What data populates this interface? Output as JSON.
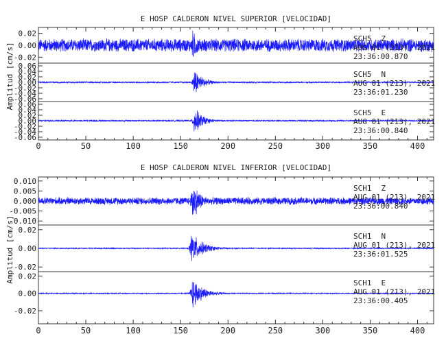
{
  "trace_color": "#1a1aff",
  "chart_data": [
    {
      "type": "line",
      "title": "E HOSP CALDERON NIVEL SUPERIOR [VELOCIDAD]",
      "ylabel": "Amplitud [cm/s]",
      "xlim": [
        0,
        417
      ],
      "x_ticks": [
        0,
        50,
        100,
        150,
        200,
        250,
        300,
        350,
        400
      ],
      "grid": false,
      "channels": [
        {
          "station": "SCH5",
          "component": "Z",
          "date": "AUG 01 (213), 2021",
          "time": "23:36:00.870",
          "ylim": [
            -0.03,
            0.03
          ],
          "y_ticks": [
            0.02,
            0.0,
            -0.02
          ],
          "y_tick_labels": [
            "0.02",
            "0.00",
            "-0.02"
          ],
          "noise_amp": 0.012,
          "peak_amp": 0.03,
          "peak_time": 162,
          "decay_s": 9
        },
        {
          "station": "SCH5",
          "component": "N",
          "date": "AUG 01 (213), 2021",
          "time": "23:36:01.230",
          "ylim": [
            -0.07,
            0.07
          ],
          "y_ticks": [
            0.06,
            0.04,
            0.02,
            0.0,
            -0.02,
            -0.04,
            -0.06
          ],
          "y_tick_labels": [
            "0.06",
            "0.04",
            "0.02",
            "0.00",
            "-0.02",
            "-0.04",
            "-0.06"
          ],
          "noise_amp": 0.003,
          "peak_amp": 0.06,
          "peak_time": 164,
          "decay_s": 9
        },
        {
          "station": "SCH5",
          "component": "E",
          "date": "AUG 01 (213), 2021",
          "time": "23:36:00.840",
          "ylim": [
            -0.07,
            0.07
          ],
          "y_ticks": [
            0.06,
            0.04,
            0.02,
            0.0,
            -0.02,
            -0.04,
            -0.06
          ],
          "y_tick_labels": [
            "0.06",
            "0.04",
            "0.02",
            "0.00",
            "-0.02",
            "-0.04",
            "-0.06"
          ],
          "noise_amp": 0.003,
          "peak_amp": 0.06,
          "peak_time": 164,
          "decay_s": 9
        }
      ]
    },
    {
      "type": "line",
      "title": "E HOSP CALDERON NIVEL INFERIOR [VELOCIDAD]",
      "ylabel": "Amplitud [cm/s]",
      "xlim": [
        0,
        417
      ],
      "x_ticks": [
        0,
        50,
        100,
        150,
        200,
        250,
        300,
        350,
        400
      ],
      "grid": false,
      "channels": [
        {
          "station": "SCH1",
          "component": "Z",
          "date": "AUG 01 (213), 2021",
          "time": "23:36:00.840",
          "ylim": [
            -0.012,
            0.012
          ],
          "y_ticks": [
            0.01,
            0.005,
            0.0,
            -0.005,
            -0.01
          ],
          "y_tick_labels": [
            "0.010",
            "0.005",
            "0.000",
            "-0.005",
            "-0.010"
          ],
          "noise_amp": 0.002,
          "peak_amp": 0.012,
          "peak_time": 162,
          "decay_s": 9
        },
        {
          "station": "SCH1",
          "component": "N",
          "date": "AUG 01 (213), 2021",
          "time": "23:36:01.525",
          "ylim": [
            -0.025,
            0.025
          ],
          "y_ticks": [
            0.02,
            0.0,
            -0.02
          ],
          "y_tick_labels": [
            "0.02",
            "0.00",
            "-0.02"
          ],
          "noise_amp": 0.0006,
          "peak_amp": 0.02,
          "peak_time": 161,
          "decay_s": 12
        },
        {
          "station": "SCH1",
          "component": "E",
          "date": "AUG 01 (213), 2021",
          "time": "23:36:00.405",
          "ylim": [
            -0.035,
            0.025
          ],
          "y_ticks": [
            0.02,
            0.0,
            -0.02
          ],
          "y_tick_labels": [
            "0.02",
            "0.00",
            "-0.02"
          ],
          "noise_amp": 0.0006,
          "peak_amp": 0.022,
          "peak_time": 162,
          "decay_s": 11
        }
      ]
    }
  ]
}
